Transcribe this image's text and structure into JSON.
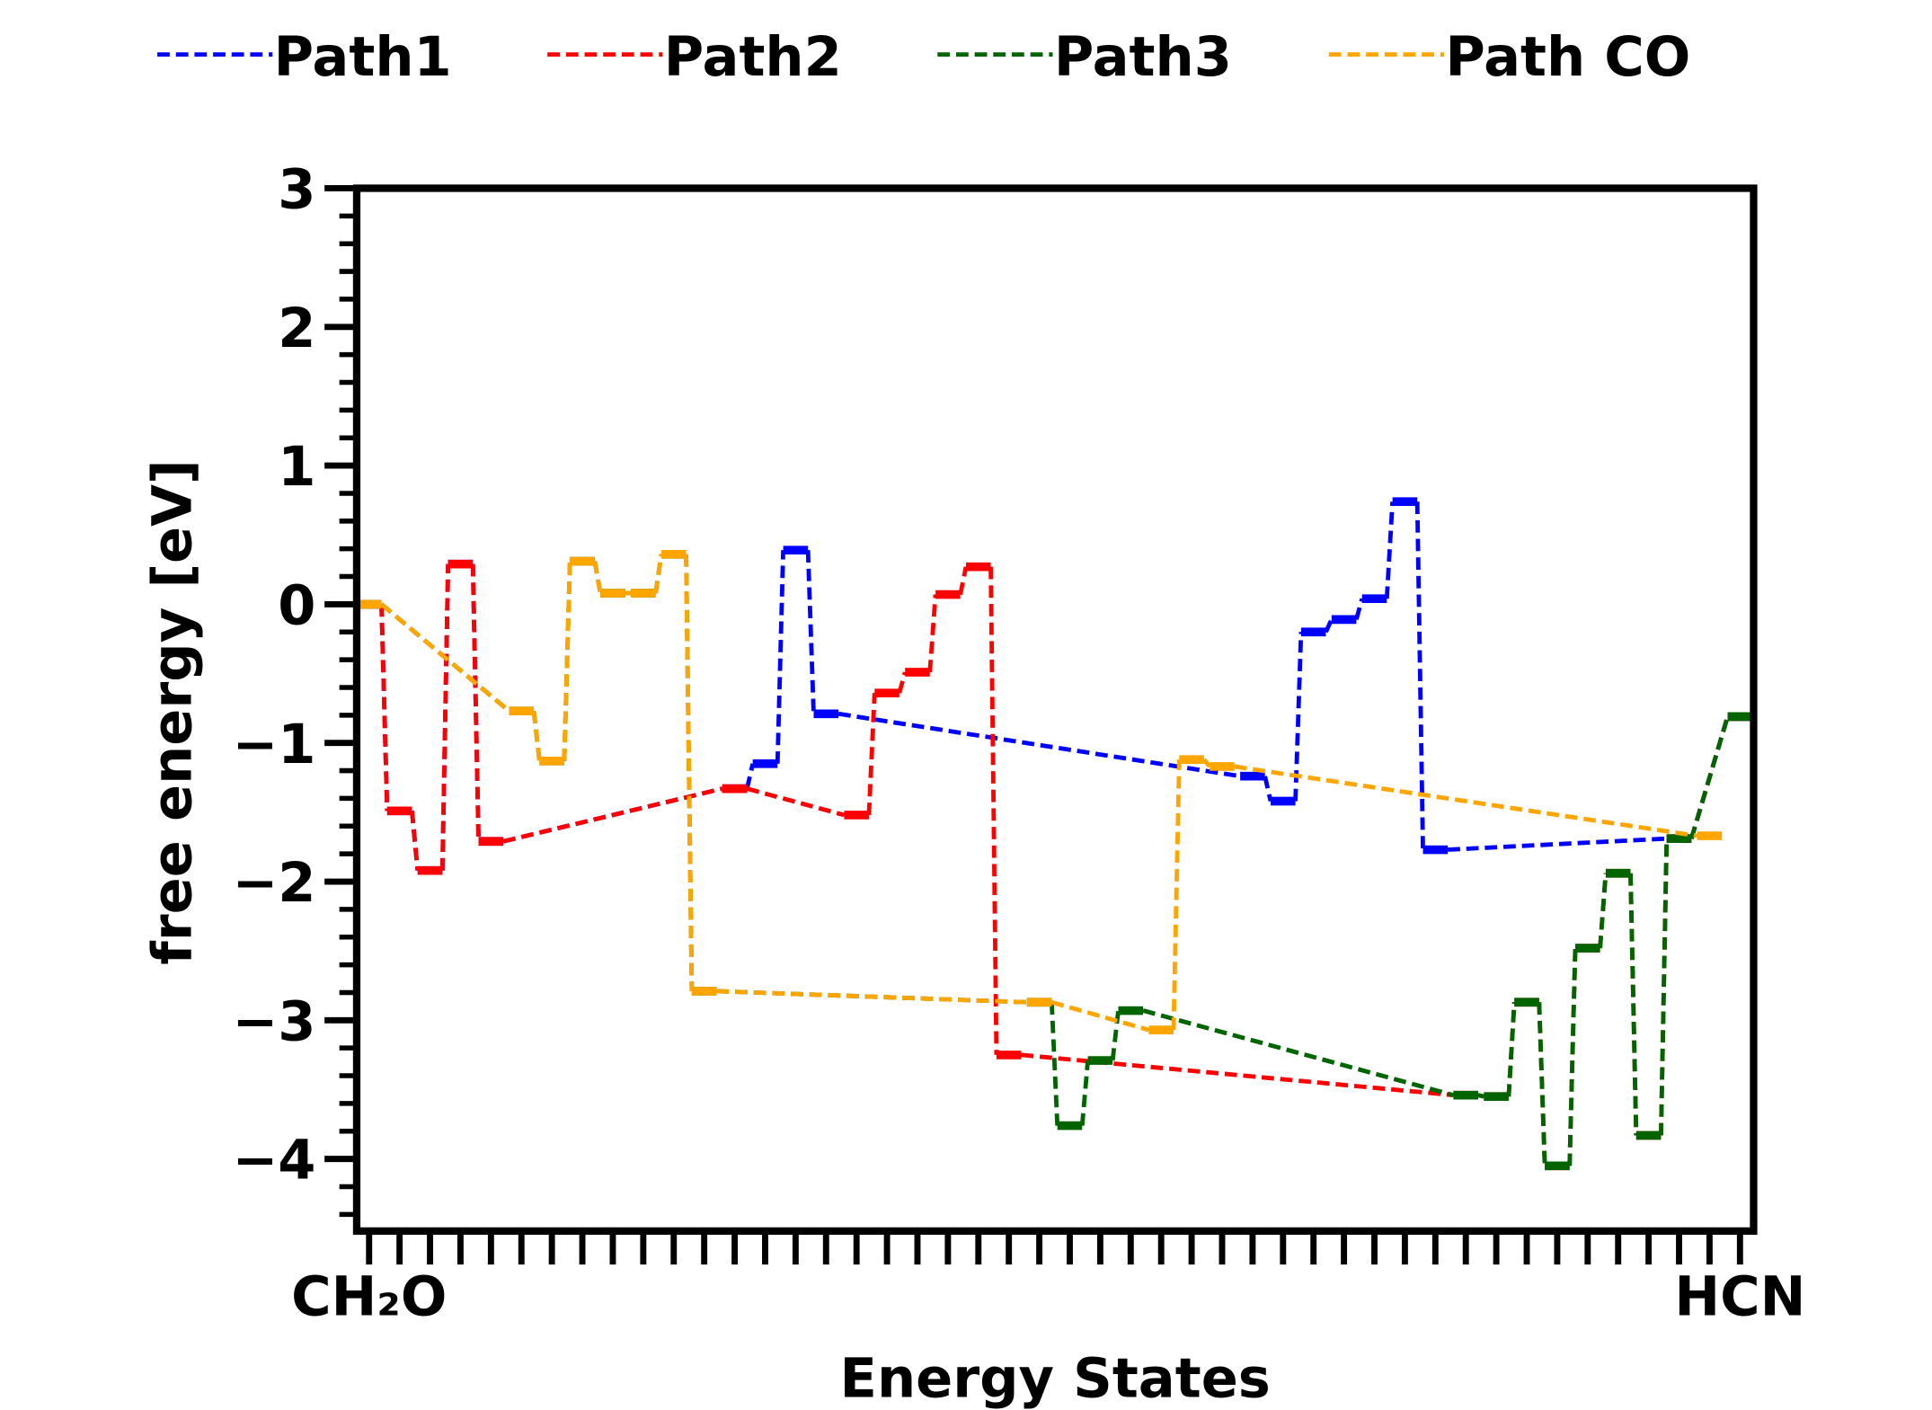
{
  "chart_data": {
    "type": "line",
    "style": "energy-level diagram (horizontal level bars joined by dashed connectors)",
    "xlabel": "Energy States",
    "ylabel": "free energy [eV]",
    "x_states": 46,
    "xtick_labels": [
      {
        "index": 0,
        "label": "CH₂O"
      },
      {
        "index": 45,
        "label": "HCN"
      }
    ],
    "ylim": [
      -4.52,
      3
    ],
    "yticks": [
      3,
      2,
      1,
      0,
      -1,
      -2,
      -3,
      -4
    ],
    "ytick_labels": [
      "3",
      "2",
      "1",
      "0",
      "−1",
      "−2",
      "−3",
      "−4"
    ],
    "grid": false,
    "legend_position": "top",
    "series": [
      {
        "name": "Path1",
        "color": "#0000ff",
        "points": [
          [
            0,
            0
          ],
          [
            1,
            -1.49
          ],
          [
            2,
            -1.92
          ],
          [
            3,
            0.29
          ],
          [
            4,
            -1.71
          ],
          [
            12,
            -1.33
          ],
          [
            13,
            -1.15
          ],
          [
            14,
            0.39
          ],
          [
            15,
            -0.79
          ],
          [
            29,
            -1.24
          ],
          [
            30,
            -1.42
          ],
          [
            31,
            -0.2
          ],
          [
            32,
            -0.11
          ],
          [
            33,
            0.04
          ],
          [
            34,
            0.74
          ],
          [
            35,
            -1.77
          ],
          [
            43,
            -1.69
          ],
          [
            45,
            -0.81
          ]
        ]
      },
      {
        "name": "Path2",
        "color": "#ff0000",
        "points": [
          [
            0,
            0
          ],
          [
            1,
            -1.49
          ],
          [
            2,
            -1.92
          ],
          [
            3,
            0.29
          ],
          [
            4,
            -1.71
          ],
          [
            12,
            -1.33
          ],
          [
            16,
            -1.52
          ],
          [
            17,
            -0.64
          ],
          [
            18,
            -0.49
          ],
          [
            19,
            0.07
          ],
          [
            20,
            0.27
          ],
          [
            21,
            -3.25
          ],
          [
            36,
            -3.54
          ],
          [
            37,
            -3.55
          ],
          [
            38,
            -2.87
          ],
          [
            39,
            -4.05
          ],
          [
            40,
            -2.48
          ],
          [
            41,
            -1.94
          ],
          [
            42,
            -3.83
          ],
          [
            43,
            -1.69
          ],
          [
            45,
            -0.81
          ]
        ]
      },
      {
        "name": "Path3",
        "color": "#006400",
        "points": [
          [
            0,
            0
          ],
          [
            5,
            -0.77
          ],
          [
            6,
            -1.13
          ],
          [
            7,
            0.31
          ],
          [
            8,
            0.08
          ],
          [
            9,
            0.08
          ],
          [
            10,
            0.36
          ],
          [
            11,
            -2.79
          ],
          [
            22,
            -2.87
          ],
          [
            23,
            -3.76
          ],
          [
            24,
            -3.29
          ],
          [
            25,
            -2.93
          ],
          [
            36,
            -3.54
          ],
          [
            37,
            -3.55
          ],
          [
            38,
            -2.87
          ],
          [
            39,
            -4.05
          ],
          [
            40,
            -2.48
          ],
          [
            41,
            -1.94
          ],
          [
            42,
            -3.83
          ],
          [
            43,
            -1.69
          ],
          [
            45,
            -0.81
          ]
        ]
      },
      {
        "name": "Path CO",
        "color": "#ffa500",
        "points": [
          [
            0,
            0
          ],
          [
            5,
            -0.77
          ],
          [
            6,
            -1.13
          ],
          [
            7,
            0.31
          ],
          [
            8,
            0.08
          ],
          [
            9,
            0.08
          ],
          [
            10,
            0.36
          ],
          [
            11,
            -2.79
          ],
          [
            22,
            -2.87
          ],
          [
            26,
            -3.07
          ],
          [
            27,
            -1.12
          ],
          [
            28,
            -1.17
          ],
          [
            44,
            -1.67
          ]
        ]
      }
    ]
  }
}
